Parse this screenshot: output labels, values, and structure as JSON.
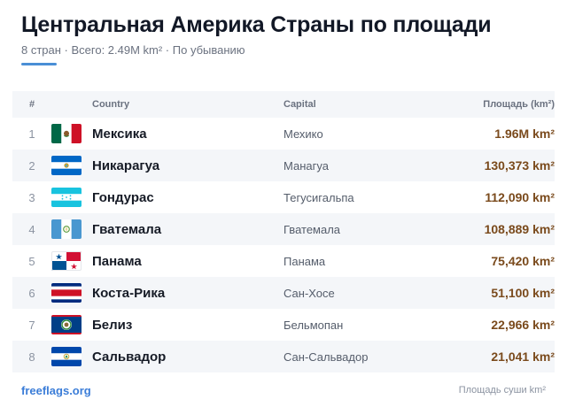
{
  "header": {
    "title": "Центральная Америка Страны по площади",
    "subtitle": "8 стран · Всего: 2.49M km² · По убыванию"
  },
  "table": {
    "columns": {
      "num": "#",
      "country": "Country",
      "capital": "Capital",
      "area": "Площадь (km²)"
    },
    "rows": [
      {
        "num": "1",
        "country": "Мексика",
        "capital": "Мехико",
        "area": "1.96M km²",
        "flag": "mexico-flag-icon"
      },
      {
        "num": "2",
        "country": "Никарагуа",
        "capital": "Манагуа",
        "area": "130,373 km²",
        "flag": "nicaragua-flag-icon"
      },
      {
        "num": "3",
        "country": "Гондурас",
        "capital": "Тегусигальпа",
        "area": "112,090 km²",
        "flag": "honduras-flag-icon"
      },
      {
        "num": "4",
        "country": "Гватемала",
        "capital": "Гватемала",
        "area": "108,889 km²",
        "flag": "guatemala-flag-icon"
      },
      {
        "num": "5",
        "country": "Панама",
        "capital": "Панама",
        "area": "75,420 km²",
        "flag": "panama-flag-icon"
      },
      {
        "num": "6",
        "country": "Коста-Рика",
        "capital": "Сан-Хосе",
        "area": "51,100 km²",
        "flag": "costa-rica-flag-icon"
      },
      {
        "num": "7",
        "country": "Белиз",
        "capital": "Бельмопан",
        "area": "22,966 km²",
        "flag": "belize-flag-icon"
      },
      {
        "num": "8",
        "country": "Сальвадор",
        "capital": "Сан-Сальвадор",
        "area": "21,041 km²",
        "flag": "el-salvador-flag-icon"
      }
    ]
  },
  "footer": {
    "source": "freeflags.org",
    "note": "Площадь суши km²"
  },
  "colors": {
    "accent": "#4a8fd6",
    "area_text": "#7a4a1c",
    "link": "#3b7dd8",
    "row_alt": "#f4f6f9"
  }
}
